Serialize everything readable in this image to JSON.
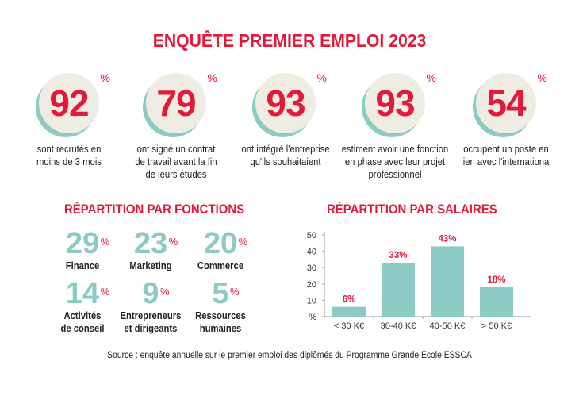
{
  "title": "ENQUÊTE PREMIER EMPLOI 2023",
  "stats": [
    {
      "value": "92",
      "unit": "%",
      "text": [
        "sont recrutés en",
        "moins de 3 mois"
      ]
    },
    {
      "value": "79",
      "unit": "%",
      "text": [
        "ont signé un contrat",
        "de travail avant la fin",
        "de leurs études"
      ]
    },
    {
      "value": "93",
      "unit": "%",
      "text": [
        "ont intégré l'entreprise",
        "qu'ils souhaitaient"
      ]
    },
    {
      "value": "93",
      "unit": "%",
      "text": [
        "estiment avoir une fonction",
        "en phase avec leur projet",
        "professionnel"
      ]
    },
    {
      "value": "54",
      "unit": "%",
      "text": [
        "occupent un poste en",
        "lien avec l'international"
      ]
    }
  ],
  "functions": {
    "title": "RÉPARTITION PAR FONCTIONS",
    "items": [
      {
        "value": "29",
        "unit": "%",
        "label": [
          "Finance"
        ]
      },
      {
        "value": "23",
        "unit": "%",
        "label": [
          "Marketing"
        ]
      },
      {
        "value": "20",
        "unit": "%",
        "label": [
          "Commerce"
        ]
      },
      {
        "value": "14",
        "unit": "%",
        "label": [
          "Activités",
          "de conseil"
        ]
      },
      {
        "value": "9",
        "unit": "%",
        "label": [
          "Entrepreneurs",
          "et dirigeants"
        ]
      },
      {
        "value": "5",
        "unit": "%",
        "label": [
          "Ressources",
          "humaines"
        ]
      }
    ]
  },
  "chart_data": {
    "type": "bar",
    "title": "RÉPARTITION PAR SALAIRES",
    "categories": [
      "< 30 K€",
      "30-40 K€",
      "40-50 K€",
      "> 50 K€"
    ],
    "values": [
      6,
      33,
      43,
      18
    ],
    "data_labels": [
      "6%",
      "33%",
      "43%",
      "18%"
    ],
    "ylabel": "%",
    "yticks": [
      "%",
      "10",
      "20",
      "30",
      "40",
      "50"
    ],
    "ylim": [
      0,
      50
    ],
    "grid": false,
    "bar_color": "#8ccbc3",
    "label_color": "#e3193a"
  },
  "source": "Source : enquête annuelle sur le premier emploi des diplômés du Programme Grande École ESSCA",
  "colors": {
    "accent": "#e3193a",
    "teal": "#8ccbc3",
    "circle": "#efece3"
  }
}
